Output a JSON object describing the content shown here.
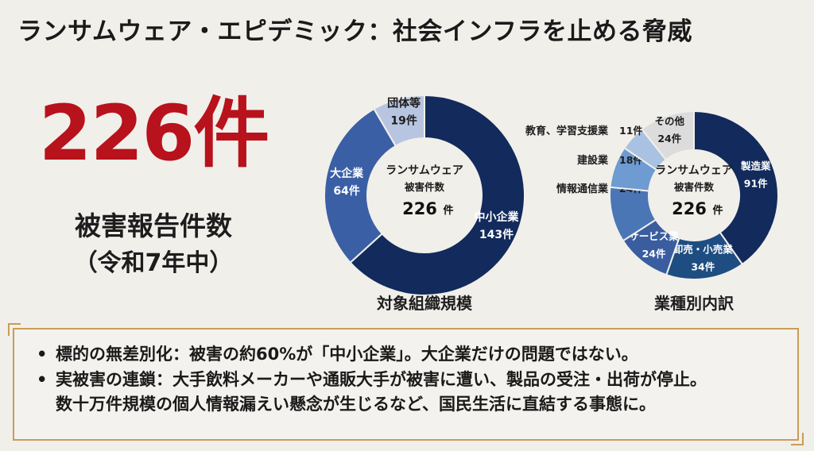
{
  "title": "ランサムウェア・エピデミック：社会インフラを止める脅威",
  "headline": {
    "count": "226件",
    "label": "被害報告件数",
    "period": "（令和7年中）"
  },
  "colors": {
    "accent_red": "#b8121c",
    "navy": "#122a5c",
    "gold_border": "#c99d55"
  },
  "chart_data": [
    {
      "type": "pie",
      "donut": true,
      "title": "対象組織規模",
      "center_lines": [
        "ランサムウェア",
        "被害件数"
      ],
      "center_value": "226",
      "center_unit": "件",
      "unit": "件",
      "slices": [
        {
          "label": "中小企業",
          "value": 143,
          "color": "#122a5c"
        },
        {
          "label": "大企業",
          "value": 64,
          "color": "#3b5fa5"
        },
        {
          "label": "団体等",
          "value": 19,
          "color": "#b8c5e0"
        }
      ]
    },
    {
      "type": "pie",
      "donut": true,
      "title": "業種別内訳",
      "center_lines": [
        "ランサムウェア",
        "被害件数"
      ],
      "center_value": "226",
      "center_unit": "件",
      "unit": "件",
      "slices": [
        {
          "label": "製造業",
          "value": 91,
          "color": "#122a5c"
        },
        {
          "label": "卸売・小売業",
          "value": 34,
          "color": "#1e4d82"
        },
        {
          "label": "サービス業",
          "value": 24,
          "color": "#3a5d9f"
        },
        {
          "label": "情報通信業",
          "value": 24,
          "color": "#4a76b6"
        },
        {
          "label": "建設業",
          "value": 18,
          "color": "#6d9bd2"
        },
        {
          "label": "教育、学習支援業",
          "value": 11,
          "color": "#a9c2e2"
        },
        {
          "label": "その他",
          "value": 24,
          "color": "#dcdcdc"
        }
      ]
    }
  ],
  "notes": [
    "標的の無差別化：被害の約60%が「中小企業」。大企業だけの問題ではない。",
    "実被害の連鎖：大手飲料メーカーや通販大手が被害に遭い、製品の受注・出荷が停止。数十万件規模の個人情報漏えい懸念が生じるなど、国民生活に直結する事態に。"
  ]
}
